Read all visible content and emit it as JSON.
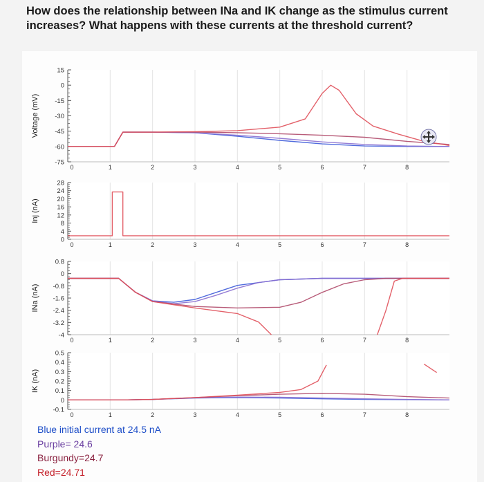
{
  "question": "How does the relationship between INa and IK change as the stimulus current increases? What happens with these currents at the threshold current?",
  "legend_lines": [
    {
      "text": "Blue initial current at 24.5 nA",
      "color": "#1f4fc8"
    },
    {
      "text": "Purple= 24.6",
      "color": "#6a3fa0"
    },
    {
      "text": "Burgundy=24.7",
      "color": "#8a2240"
    },
    {
      "text": "Red=24.71",
      "color": "#c4202a"
    }
  ],
  "colors": {
    "blue": "#3d5bd9",
    "purple": "#8a6fd0",
    "burgundy": "#b04a6a",
    "red": "#e0505a",
    "axis": "#555555",
    "grid": "#e4e4e4"
  },
  "chart_data": [
    {
      "type": "line",
      "ylabel": "Voltage (mV)",
      "xlim": [
        0,
        9
      ],
      "ylim": [
        -75,
        15
      ],
      "x_ticks": [
        "0",
        "1",
        "2",
        "3",
        "4",
        "5",
        "6",
        "7",
        "8"
      ],
      "y_ticks": [
        "15",
        "0",
        "-15",
        "-30",
        "-45",
        "-60",
        "-75"
      ],
      "series": [
        {
          "color": "blue",
          "points": [
            [
              0,
              -60
            ],
            [
              1.1,
              -60
            ],
            [
              1.3,
              -46
            ],
            [
              2,
              -46
            ],
            [
              3,
              -46.5
            ],
            [
              4,
              -50
            ],
            [
              5,
              -54
            ],
            [
              6,
              -57.5
            ],
            [
              7,
              -59.5
            ],
            [
              8,
              -60
            ],
            [
              9,
              -60
            ]
          ]
        },
        {
          "color": "purple",
          "points": [
            [
              0,
              -60
            ],
            [
              1.1,
              -60
            ],
            [
              1.3,
              -46
            ],
            [
              2,
              -46
            ],
            [
              3,
              -46.5
            ],
            [
              4,
              -49
            ],
            [
              5,
              -52
            ],
            [
              6,
              -55.5
            ],
            [
              7,
              -58
            ],
            [
              8,
              -59.5
            ],
            [
              9,
              -60
            ]
          ]
        },
        {
          "color": "burgundy",
          "points": [
            [
              0,
              -60
            ],
            [
              1.1,
              -60
            ],
            [
              1.3,
              -46
            ],
            [
              2,
              -46
            ],
            [
              3,
              -46
            ],
            [
              4,
              -46.5
            ],
            [
              5,
              -47.5
            ],
            [
              6,
              -49
            ],
            [
              7,
              -51
            ],
            [
              8,
              -55
            ],
            [
              9,
              -58
            ]
          ]
        },
        {
          "color": "red",
          "points": [
            [
              0,
              -60
            ],
            [
              1.1,
              -60
            ],
            [
              1.3,
              -46
            ],
            [
              2,
              -46
            ],
            [
              3,
              -45.5
            ],
            [
              4,
              -44.5
            ],
            [
              5,
              -41
            ],
            [
              5.6,
              -33
            ],
            [
              6,
              -8
            ],
            [
              6.2,
              0
            ],
            [
              6.4,
              -5
            ],
            [
              6.8,
              -28
            ],
            [
              7.2,
              -40
            ],
            [
              7.8,
              -48
            ],
            [
              8.4,
              -55
            ],
            [
              9,
              -59
            ]
          ]
        }
      ]
    },
    {
      "type": "line",
      "ylabel": "Inj (nA)",
      "xlim": [
        0,
        9
      ],
      "ylim": [
        -2,
        30
      ],
      "x_ticks": [
        "0",
        "1",
        "2",
        "3",
        "4",
        "5",
        "6",
        "7",
        "8"
      ],
      "y_ticks": [
        "28",
        "24",
        "20",
        "16",
        "12",
        "8",
        "4",
        "0"
      ],
      "series": [
        {
          "color": "red",
          "points": [
            [
              0,
              0
            ],
            [
              1.05,
              0
            ],
            [
              1.05,
              24.71
            ],
            [
              1.3,
              24.71
            ],
            [
              1.3,
              0
            ],
            [
              9,
              0
            ]
          ]
        }
      ]
    },
    {
      "type": "line",
      "ylabel": "INa (nA)",
      "xlim": [
        0,
        9
      ],
      "ylim": [
        -4,
        1.2
      ],
      "x_ticks": [
        "0",
        "1",
        "2",
        "3",
        "4",
        "5",
        "6",
        "7",
        "8"
      ],
      "y_ticks": [
        "0.8",
        "0",
        "-0.8",
        "-1.6",
        "-2.4",
        "-3.2",
        "-4"
      ],
      "series": [
        {
          "color": "blue",
          "points": [
            [
              0,
              0
            ],
            [
              1.2,
              0
            ],
            [
              1.6,
              -1.0
            ],
            [
              2,
              -1.6
            ],
            [
              2.5,
              -1.7
            ],
            [
              3,
              -1.5
            ],
            [
              3.5,
              -1.0
            ],
            [
              4,
              -0.5
            ],
            [
              5,
              -0.1
            ],
            [
              6,
              0
            ],
            [
              9,
              0
            ]
          ]
        },
        {
          "color": "purple",
          "points": [
            [
              0,
              0
            ],
            [
              1.2,
              0
            ],
            [
              1.6,
              -1.0
            ],
            [
              2,
              -1.6
            ],
            [
              2.5,
              -1.8
            ],
            [
              3,
              -1.65
            ],
            [
              3.5,
              -1.2
            ],
            [
              4,
              -0.7
            ],
            [
              4.5,
              -0.3
            ],
            [
              5,
              -0.1
            ],
            [
              6,
              0
            ],
            [
              9,
              0
            ]
          ]
        },
        {
          "color": "burgundy",
          "points": [
            [
              0,
              0
            ],
            [
              1.2,
              0
            ],
            [
              1.6,
              -1.0
            ],
            [
              2,
              -1.65
            ],
            [
              3,
              -2.0
            ],
            [
              4,
              -2.1
            ],
            [
              5,
              -2.05
            ],
            [
              5.5,
              -1.7
            ],
            [
              6,
              -1.0
            ],
            [
              6.5,
              -0.4
            ],
            [
              7,
              -0.1
            ],
            [
              7.5,
              0
            ],
            [
              9,
              0
            ]
          ]
        },
        {
          "color": "red",
          "points": [
            [
              0,
              0
            ],
            [
              1.2,
              0
            ],
            [
              1.6,
              -1.0
            ],
            [
              2,
              -1.65
            ],
            [
              3,
              -2.1
            ],
            [
              4,
              -2.5
            ],
            [
              4.5,
              -3.1
            ],
            [
              4.8,
              -4.0
            ]
          ]
        },
        {
          "color": "red",
          "points": [
            [
              7.3,
              -4.0
            ],
            [
              7.5,
              -2.3
            ],
            [
              7.7,
              -0.2
            ],
            [
              7.9,
              0
            ],
            [
              9,
              0
            ]
          ]
        }
      ]
    },
    {
      "type": "line",
      "ylabel": "IK (nA)",
      "xlim": [
        0,
        9
      ],
      "ylim": [
        -0.1,
        0.5
      ],
      "x_ticks": [
        "0",
        "1",
        "2",
        "3",
        "4",
        "5",
        "6",
        "7",
        "8"
      ],
      "y_ticks": [
        "0.5",
        "0.4",
        "0.3",
        "0.2",
        "0.1",
        "0",
        "-0.1"
      ],
      "series": [
        {
          "color": "blue",
          "points": [
            [
              0,
              0
            ],
            [
              1.3,
              0
            ],
            [
              2,
              0.005
            ],
            [
              3,
              0.02
            ],
            [
              4,
              0.025
            ],
            [
              5,
              0.02
            ],
            [
              6,
              0.012
            ],
            [
              7,
              0.005
            ],
            [
              9,
              0
            ]
          ]
        },
        {
          "color": "purple",
          "points": [
            [
              0,
              0
            ],
            [
              1.3,
              0
            ],
            [
              2,
              0.005
            ],
            [
              3,
              0.022
            ],
            [
              4,
              0.03
            ],
            [
              5,
              0.028
            ],
            [
              6,
              0.02
            ],
            [
              7,
              0.012
            ],
            [
              8,
              0.005
            ],
            [
              9,
              0
            ]
          ]
        },
        {
          "color": "burgundy",
          "points": [
            [
              0,
              0
            ],
            [
              1.3,
              0
            ],
            [
              2,
              0.005
            ],
            [
              3,
              0.025
            ],
            [
              4,
              0.045
            ],
            [
              5,
              0.06
            ],
            [
              6,
              0.07
            ],
            [
              7,
              0.06
            ],
            [
              8,
              0.035
            ],
            [
              9,
              0.02
            ]
          ]
        },
        {
          "color": "red",
          "points": [
            [
              0,
              0
            ],
            [
              1.3,
              0
            ],
            [
              2,
              0.005
            ],
            [
              3,
              0.025
            ],
            [
              4,
              0.05
            ],
            [
              5,
              0.08
            ],
            [
              5.5,
              0.11
            ],
            [
              5.9,
              0.2
            ],
            [
              6.1,
              0.37
            ]
          ]
        },
        {
          "color": "red",
          "points": [
            [
              8.4,
              0.38
            ],
            [
              8.7,
              0.29
            ]
          ]
        }
      ]
    }
  ]
}
